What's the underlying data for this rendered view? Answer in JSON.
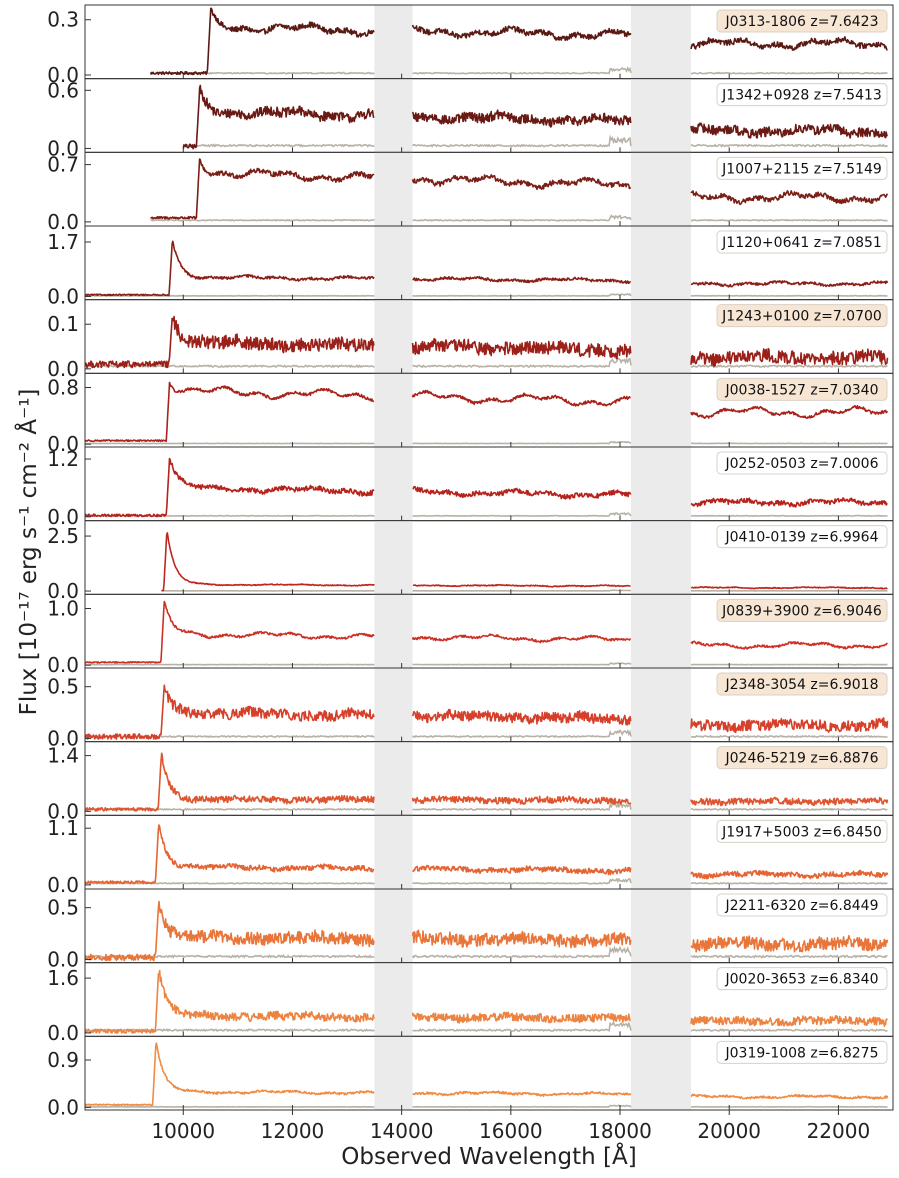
{
  "chart_data": {
    "type": "line",
    "xlabel": "Observed Wavelength [Å]",
    "ylabel": "Flux [10⁻¹⁷ erg s⁻¹ cm⁻² Å⁻¹]",
    "xlim": [
      8200,
      23000
    ],
    "x_ticks": [
      10000,
      12000,
      14000,
      16000,
      18000,
      20000,
      22000
    ],
    "x_tick_labels": [
      "10000",
      "12000",
      "14000",
      "16000",
      "18000",
      "20000",
      "22000"
    ],
    "shaded_regions": [
      [
        13500,
        14200
      ],
      [
        18200,
        19300
      ]
    ],
    "gaps": [
      [
        13500,
        14200
      ],
      [
        18200,
        19300
      ]
    ],
    "error_color": "#b8b1a5",
    "panels": [
      {
        "label": "J0313-1806 z=7.6423",
        "highlight": true,
        "color": "#5a1a14",
        "yticks": [
          "0.0",
          "0.3"
        ],
        "tick_values": [
          0.0,
          0.3
        ],
        "ylim": [
          -0.02,
          0.38
        ],
        "start": 9400,
        "end": 22900,
        "lya": 10500,
        "pre": 0.01,
        "peak": 0.34,
        "cont": 0.26,
        "red": 0.17,
        "noise": 0.015,
        "err": 0.01
      },
      {
        "label": "J1342+0928 z=7.5413",
        "highlight": false,
        "color": "#6a1a14",
        "yticks": [
          "0.0",
          "0.6"
        ],
        "tick_values": [
          0.0,
          0.6
        ],
        "ylim": [
          -0.04,
          0.72
        ],
        "start": 10000,
        "end": 22900,
        "lya": 10300,
        "pre": 0.02,
        "peak": 0.6,
        "cont": 0.38,
        "red": 0.18,
        "noise": 0.05,
        "err": 0.03
      },
      {
        "label": "J1007+2115 z=7.5149",
        "highlight": false,
        "color": "#7a1e16",
        "yticks": [
          "0.0",
          "0.7"
        ],
        "tick_values": [
          0.0,
          0.7
        ],
        "ylim": [
          -0.05,
          0.85
        ],
        "start": 9400,
        "end": 22900,
        "lya": 10300,
        "pre": 0.05,
        "peak": 0.78,
        "cont": 0.6,
        "red": 0.3,
        "noise": 0.03,
        "err": 0.02
      },
      {
        "label": "J1120+0641 z=7.0851",
        "highlight": false,
        "color": "#8a1f18",
        "yticks": [
          "0.0",
          "1.7"
        ],
        "tick_values": [
          0.0,
          1.7
        ],
        "ylim": [
          -0.1,
          2.2
        ],
        "start": 8200,
        "end": 22900,
        "lya": 9800,
        "pre": 0.05,
        "peak": 1.75,
        "cont": 0.6,
        "red": 0.4,
        "noise": 0.04,
        "err": 0.02
      },
      {
        "label": "J1243+0100 z=7.0700",
        "highlight": true,
        "color": "#9a2019",
        "yticks": [
          "0.0",
          "0.1"
        ],
        "tick_values": [
          0.0,
          0.1
        ],
        "ylim": [
          -0.01,
          0.155
        ],
        "start": 8200,
        "end": 22900,
        "lya": 9800,
        "pre": 0.01,
        "peak": 0.12,
        "cont": 0.06,
        "red": 0.025,
        "noise": 0.015,
        "err": 0.006
      },
      {
        "label": "J0038-1527 z=7.0340",
        "highlight": true,
        "color": "#a8221b",
        "yticks": [
          "0.0",
          "0.8"
        ],
        "tick_values": [
          0.0,
          0.8
        ],
        "ylim": [
          -0.04,
          1.0
        ],
        "start": 8200,
        "end": 22900,
        "lya": 9750,
        "pre": 0.05,
        "peak": 0.9,
        "cont": 0.75,
        "red": 0.45,
        "noise": 0.02,
        "err": 0.01
      },
      {
        "label": "J0252-0503 z=7.0006",
        "highlight": false,
        "color": "#b6221c",
        "yticks": [
          "0.0",
          "1.2"
        ],
        "tick_values": [
          0.0,
          1.2
        ],
        "ylim": [
          -0.08,
          1.45
        ],
        "start": 8200,
        "end": 22900,
        "lya": 9750,
        "pre": 0.03,
        "peak": 1.25,
        "cont": 0.6,
        "red": 0.3,
        "noise": 0.05,
        "err": 0.02
      },
      {
        "label": "J0410-0139 z=6.9964",
        "highlight": false,
        "color": "#c0261e",
        "yticks": [
          "0.0",
          "2.5"
        ],
        "tick_values": [
          0.0,
          2.5
        ],
        "ylim": [
          -0.15,
          3.2
        ],
        "start": 9600,
        "end": 22900,
        "lya": 9700,
        "pre": 0.02,
        "peak": 2.75,
        "cont": 0.3,
        "red": 0.15,
        "noise": 0.02,
        "err": 0.01
      },
      {
        "label": "J0839+3900 z=6.9046",
        "highlight": true,
        "color": "#cc3024",
        "yticks": [
          "0.0",
          "1.0"
        ],
        "tick_values": [
          0.0,
          1.0
        ],
        "ylim": [
          -0.05,
          1.25
        ],
        "start": 8200,
        "end": 22900,
        "lya": 9650,
        "pre": 0.05,
        "peak": 1.1,
        "cont": 0.55,
        "red": 0.35,
        "noise": 0.02,
        "err": 0.01
      },
      {
        "label": "J2348-3054 z=6.9018",
        "highlight": true,
        "color": "#d6402a",
        "yticks": [
          "0.0",
          "0.5"
        ],
        "tick_values": [
          0.0,
          0.5
        ],
        "ylim": [
          -0.03,
          0.68
        ],
        "start": 8200,
        "end": 22900,
        "lya": 9650,
        "pre": 0.02,
        "peak": 0.5,
        "cont": 0.25,
        "red": 0.13,
        "noise": 0.05,
        "err": 0.02
      },
      {
        "label": "J0246-5219 z=6.8876",
        "highlight": true,
        "color": "#de5530",
        "yticks": [
          "0.0",
          "1.4"
        ],
        "tick_values": [
          0.0,
          1.4
        ],
        "ylim": [
          -0.1,
          1.75
        ],
        "start": 8200,
        "end": 22900,
        "lya": 9600,
        "pre": 0.05,
        "peak": 1.45,
        "cont": 0.3,
        "red": 0.25,
        "noise": 0.08,
        "err": 0.05
      },
      {
        "label": "J1917+5003 z=6.8450",
        "highlight": false,
        "color": "#e46434",
        "yticks": [
          "0.0",
          "1.1"
        ],
        "tick_values": [
          0.0,
          1.1
        ],
        "ylim": [
          -0.08,
          1.35
        ],
        "start": 8200,
        "end": 22900,
        "lya": 9550,
        "pre": 0.05,
        "peak": 1.2,
        "cont": 0.35,
        "red": 0.2,
        "noise": 0.05,
        "err": 0.03
      },
      {
        "label": "J2211-6320 z=6.8449",
        "highlight": false,
        "color": "#e8753a",
        "yticks": [
          "0.0",
          "0.5"
        ],
        "tick_values": [
          0.0,
          0.5
        ],
        "ylim": [
          -0.03,
          0.68
        ],
        "start": 8200,
        "end": 22900,
        "lya": 9550,
        "pre": 0.02,
        "peak": 0.55,
        "cont": 0.22,
        "red": 0.15,
        "noise": 0.06,
        "err": 0.03
      },
      {
        "label": "J0020-3653 z=6.8340",
        "highlight": false,
        "color": "#ed8340",
        "yticks": [
          "0.0",
          "1.6"
        ],
        "tick_values": [
          0.0,
          1.6
        ],
        "ylim": [
          -0.1,
          2.05
        ],
        "start": 8200,
        "end": 22900,
        "lya": 9550,
        "pre": 0.05,
        "peak": 1.9,
        "cont": 0.5,
        "red": 0.35,
        "noise": 0.12,
        "err": 0.08
      },
      {
        "label": "J0319-1008 z=6.8275",
        "highlight": false,
        "color": "#f08c42",
        "yticks": [
          "0.0",
          "0.9"
        ],
        "tick_values": [
          0.0,
          0.9
        ],
        "ylim": [
          -0.05,
          1.35
        ],
        "start": 8200,
        "end": 22900,
        "lya": 9500,
        "pre": 0.05,
        "peak": 1.25,
        "cont": 0.3,
        "red": 0.2,
        "noise": 0.02,
        "err": 0.01
      }
    ]
  }
}
